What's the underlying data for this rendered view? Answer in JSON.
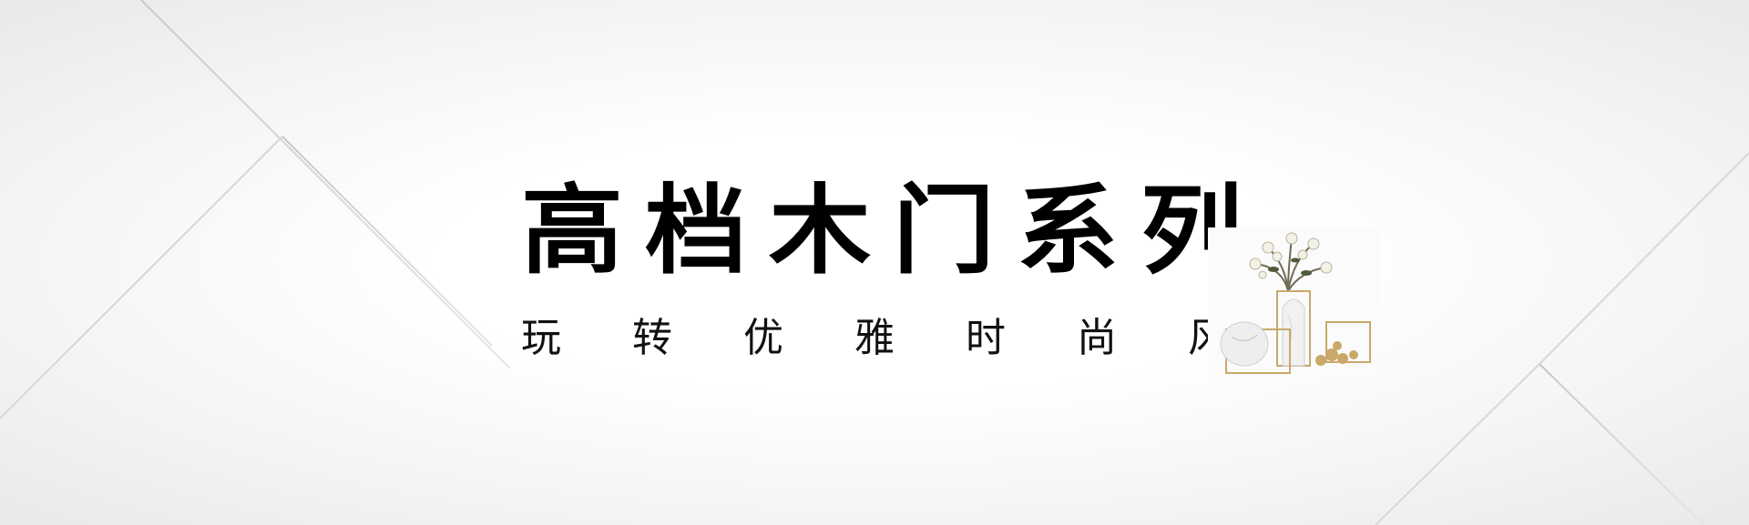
{
  "banner": {
    "title": "高档木门系列",
    "subtitle": "玩转优雅时尚风"
  },
  "decor": {
    "icon": "vase-flowers-decor-icon",
    "accent": "#c9a86a"
  },
  "colors": {
    "background": "#ffffff",
    "line": "#d2d2d2",
    "text": "#000000"
  }
}
